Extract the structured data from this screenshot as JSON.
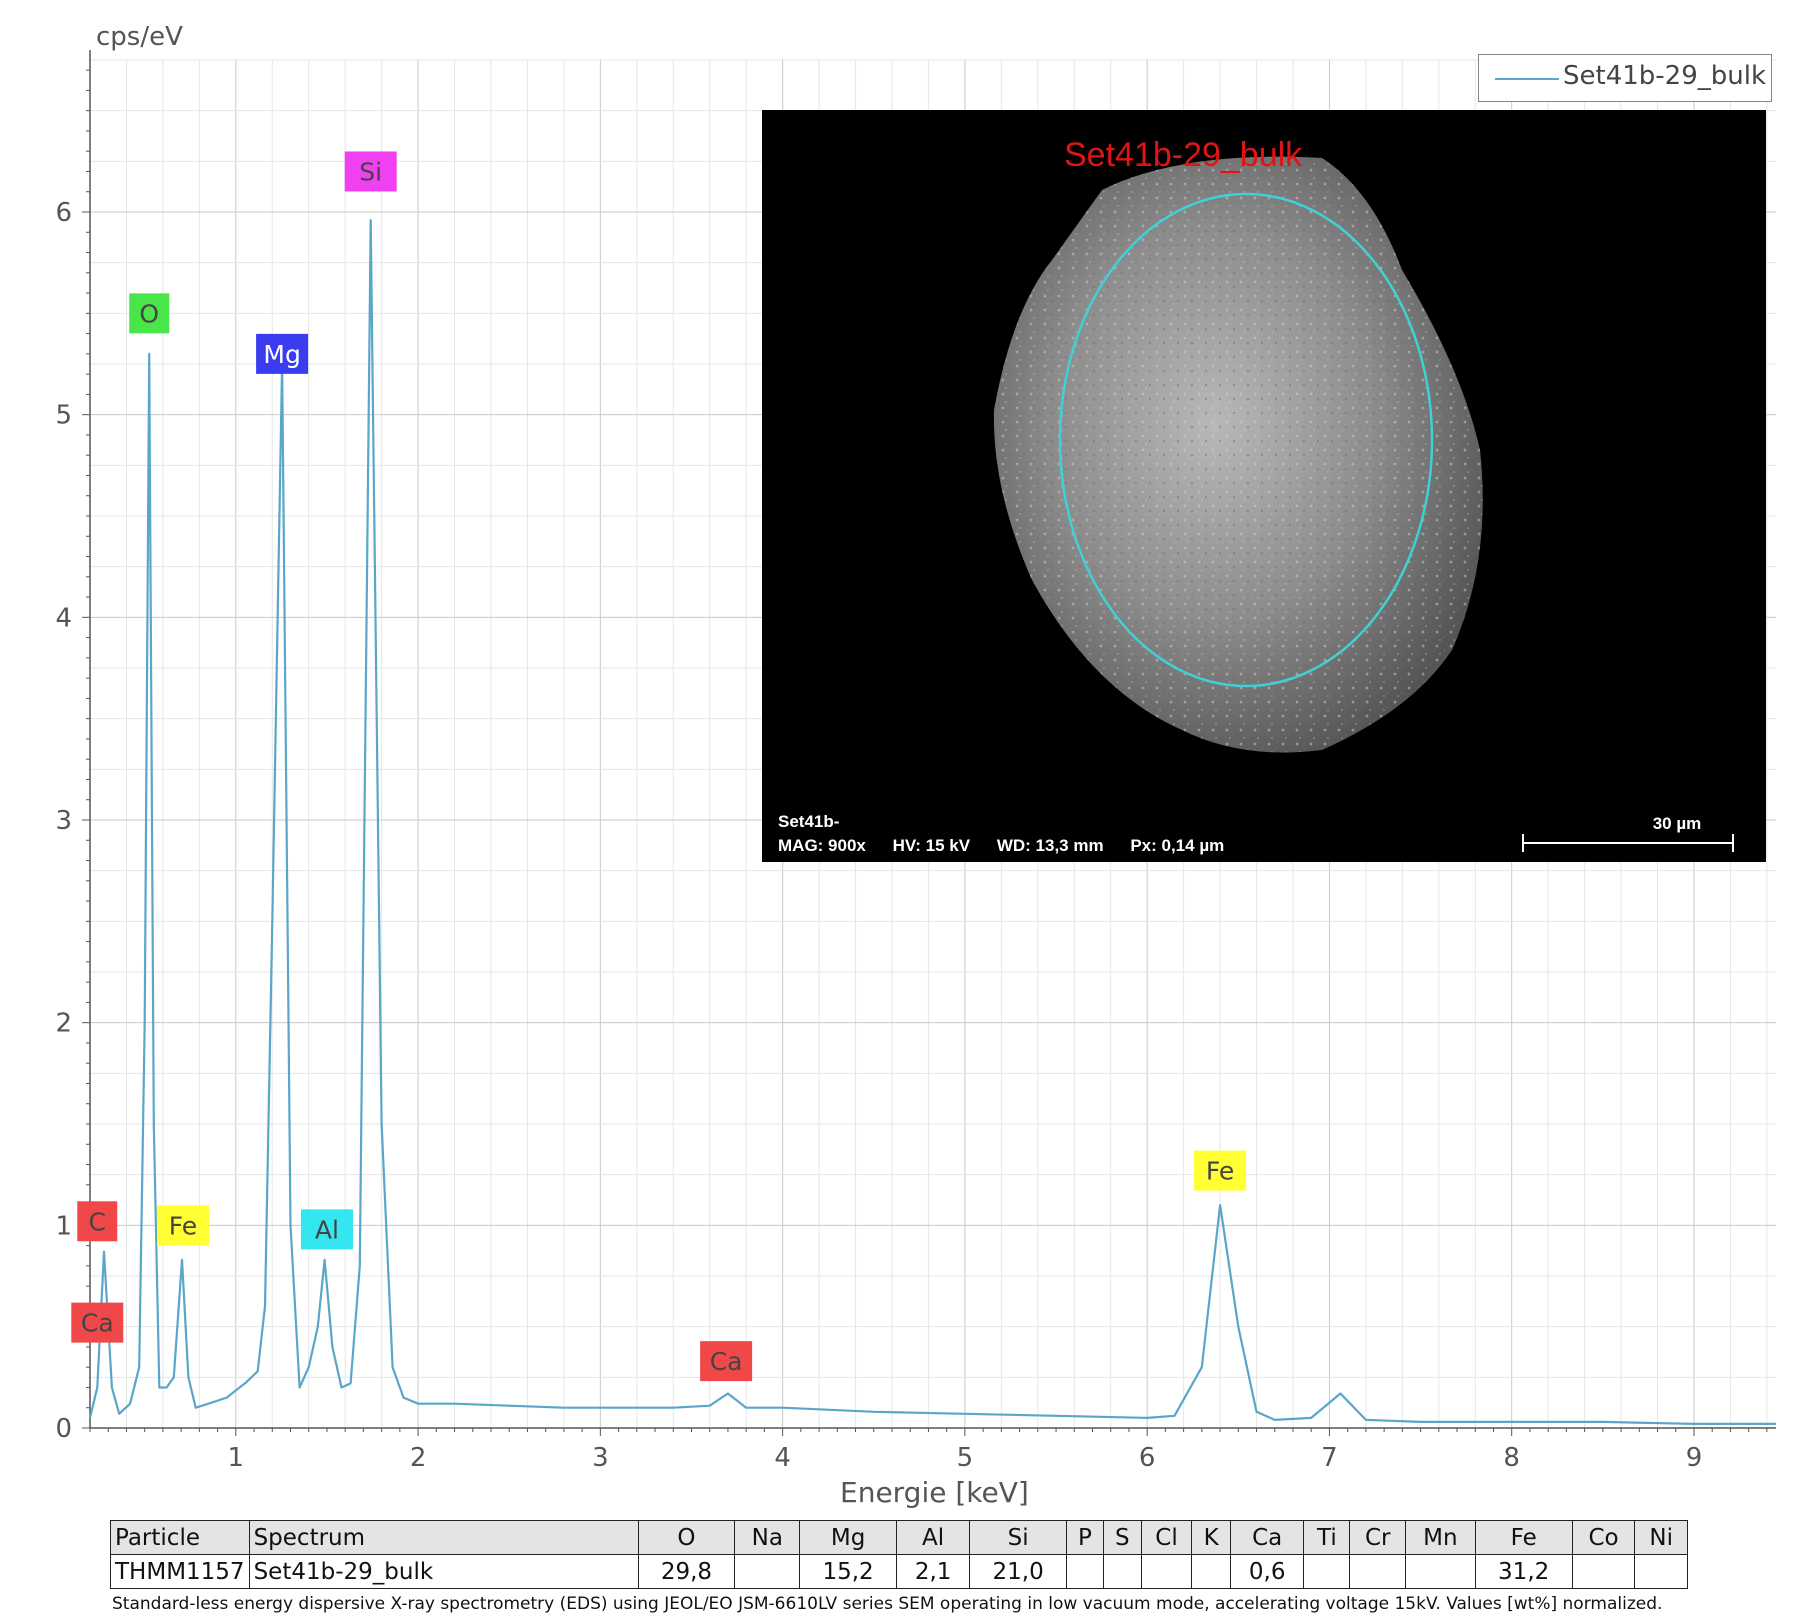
{
  "chart_data": {
    "type": "line",
    "ylabel": "cps/eV",
    "xlabel": "Energie [keV]",
    "xlim": [
      0.2,
      9.45
    ],
    "ylim": [
      0,
      6.75
    ],
    "xticks": [
      1,
      2,
      3,
      4,
      5,
      6,
      7,
      8,
      9
    ],
    "yticks": [
      0,
      1,
      2,
      3,
      4,
      5,
      6
    ],
    "grid": true,
    "legend_position": "top-right",
    "series": [
      {
        "name": "Set41b-29_bulk",
        "color": "#5aa6c8",
        "x": [
          0.2,
          0.24,
          0.277,
          0.32,
          0.36,
          0.42,
          0.47,
          0.5,
          0.525,
          0.55,
          0.58,
          0.62,
          0.66,
          0.705,
          0.74,
          0.78,
          0.85,
          0.95,
          1.05,
          1.12,
          1.16,
          1.2,
          1.254,
          1.3,
          1.35,
          1.4,
          1.45,
          1.487,
          1.53,
          1.58,
          1.63,
          1.68,
          1.74,
          1.8,
          1.86,
          1.92,
          2.0,
          2.2,
          2.5,
          2.8,
          3.1,
          3.4,
          3.6,
          3.7,
          3.8,
          4.0,
          4.5,
          5.0,
          5.5,
          6.0,
          6.15,
          6.3,
          6.4,
          6.5,
          6.6,
          6.7,
          6.9,
          7.06,
          7.2,
          7.5,
          8.0,
          8.5,
          9.0,
          9.45
        ],
        "y": [
          0.05,
          0.2,
          0.87,
          0.2,
          0.07,
          0.12,
          0.3,
          2.0,
          5.3,
          1.5,
          0.2,
          0.2,
          0.25,
          0.83,
          0.25,
          0.1,
          0.12,
          0.15,
          0.22,
          0.28,
          0.6,
          2.5,
          5.25,
          1.0,
          0.2,
          0.3,
          0.5,
          0.83,
          0.4,
          0.2,
          0.22,
          0.8,
          5.96,
          1.5,
          0.3,
          0.15,
          0.12,
          0.12,
          0.11,
          0.1,
          0.1,
          0.1,
          0.11,
          0.17,
          0.1,
          0.1,
          0.08,
          0.07,
          0.06,
          0.05,
          0.06,
          0.3,
          1.1,
          0.5,
          0.08,
          0.04,
          0.05,
          0.17,
          0.04,
          0.03,
          0.03,
          0.03,
          0.02,
          0.02
        ]
      }
    ],
    "annotations": [
      {
        "label": "C",
        "x": 0.24,
        "y": 1.02,
        "color": "#f04848"
      },
      {
        "label": "Ca",
        "x": 0.24,
        "y": 0.52,
        "color": "#f04848"
      },
      {
        "label": "O",
        "x": 0.525,
        "y": 5.5,
        "color": "#49e649"
      },
      {
        "label": "Fe",
        "x": 0.71,
        "y": 1.0,
        "color": "#ffff33"
      },
      {
        "label": "Mg",
        "x": 1.254,
        "y": 5.3,
        "color": "#3b3bf0"
      },
      {
        "label": "Al",
        "x": 1.5,
        "y": 0.98,
        "color": "#33e6f0"
      },
      {
        "label": "Si",
        "x": 1.74,
        "y": 6.2,
        "color": "#f040f0"
      },
      {
        "label": "Ca",
        "x": 3.69,
        "y": 0.33,
        "color": "#f04848"
      },
      {
        "label": "Fe",
        "x": 6.4,
        "y": 1.27,
        "color": "#ffff33"
      }
    ]
  },
  "inset": {
    "title": "Set41b-29_bulk",
    "line1": "Set41b-",
    "mag": "MAG: 900x",
    "hv": "HV: 15 kV",
    "wd": "WD: 13,3 mm",
    "px": "Px: 0,14 µm",
    "scale": "30 µm",
    "roi_color": "#40d0d8"
  },
  "table": {
    "headers": [
      "Particle",
      "Spectrum",
      "O",
      "Na",
      "Mg",
      "Al",
      "Si",
      "P",
      "S",
      "Cl",
      "K",
      "Ca",
      "Ti",
      "Cr",
      "Mn",
      "Fe",
      "Co",
      "Ni"
    ],
    "row": [
      "THMM1157",
      "Set41b-29_bulk",
      "29,8",
      "",
      "15,2",
      "2,1",
      "21,0",
      "",
      "",
      "",
      "",
      "0,6",
      "",
      "",
      "",
      "31,2",
      "",
      ""
    ]
  },
  "footnote": "Standard-less energy dispersive X-ray spectrometry (EDS) using JEOL/EO JSM-6610LV series SEM operating in low vacuum mode, accelerating voltage 15kV. Values [wt%] normalized."
}
